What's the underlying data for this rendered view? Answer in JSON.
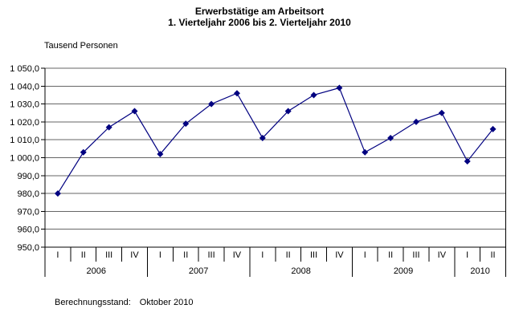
{
  "title": {
    "line1": "Erwerbstätige am Arbeitsort",
    "line2": "1. Vierteljahr 2006 bis 2. Vierteljahr 2010"
  },
  "y_axis_unit": "Tausend Personen",
  "footer": {
    "label": "Berechnungsstand:",
    "value": "Oktober 2010"
  },
  "colors": {
    "series": "#000080",
    "gridline": "#666666",
    "axis": "#000000",
    "background": "#ffffff",
    "text": "#000000"
  },
  "chart_data": {
    "type": "line",
    "title": "Erwerbstätige am Arbeitsort",
    "subtitle": "1. Vierteljahr 2006 bis 2. Vierteljahr 2010",
    "xlabel": "",
    "ylabel": "Tausend Personen",
    "ylim": [
      950,
      1050
    ],
    "y_tick_step": 10,
    "y_tick_labels": [
      "1 050,0",
      "1 040,0",
      "1 030,0",
      "1 020,0",
      "1 010,0",
      "1 000,0",
      "990,0",
      "980,0",
      "970,0",
      "960,0",
      "950,0"
    ],
    "grid": true,
    "legend": false,
    "marker": "diamond",
    "years": [
      {
        "label": "2006",
        "quarters": [
          "I",
          "II",
          "III",
          "IV"
        ]
      },
      {
        "label": "2007",
        "quarters": [
          "I",
          "II",
          "III",
          "IV"
        ]
      },
      {
        "label": "2008",
        "quarters": [
          "I",
          "II",
          "III",
          "IV"
        ]
      },
      {
        "label": "2009",
        "quarters": [
          "I",
          "II",
          "III",
          "IV"
        ]
      },
      {
        "label": "2010",
        "quarters": [
          "I",
          "II"
        ]
      }
    ],
    "series": [
      {
        "name": "Erwerbstätige am Arbeitsort",
        "values": [
          980,
          1003,
          1017,
          1026,
          1002,
          1019,
          1030,
          1036,
          1011,
          1026,
          1035,
          1039,
          1003,
          1011,
          1020,
          1025,
          998,
          1016
        ]
      }
    ]
  }
}
